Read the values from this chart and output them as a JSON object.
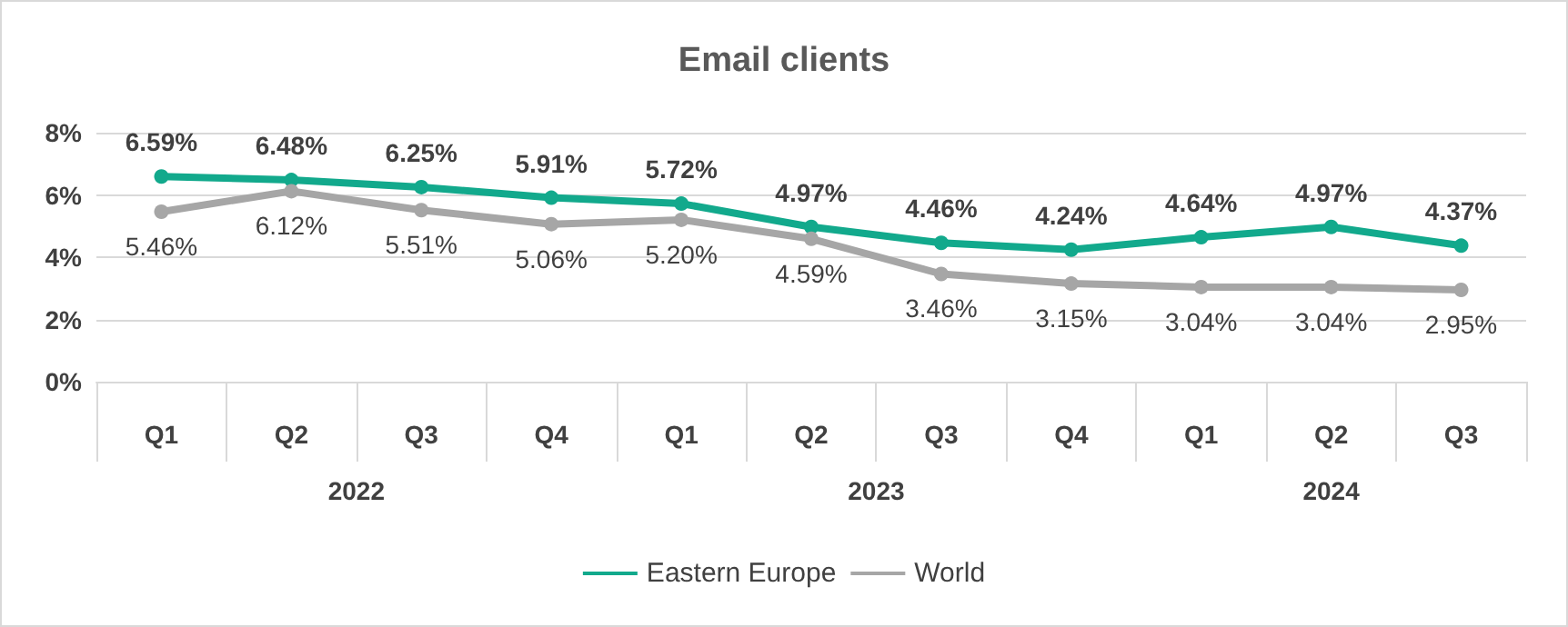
{
  "chart_data": {
    "type": "line",
    "title": "Email clients",
    "categories": [
      "Q1",
      "Q2",
      "Q3",
      "Q4",
      "Q1",
      "Q2",
      "Q3",
      "Q4",
      "Q1",
      "Q2",
      "Q3"
    ],
    "series": [
      {
        "name": "Eastern Europe",
        "color": "#12a98c",
        "values": [
          6.59,
          6.48,
          6.25,
          5.91,
          5.72,
          4.97,
          4.46,
          4.24,
          4.64,
          4.97,
          4.37
        ],
        "value_labels": [
          "6.59%",
          "6.48%",
          "6.25%",
          "5.91%",
          "5.72%",
          "4.97%",
          "4.46%",
          "4.24%",
          "4.64%",
          "4.97%",
          "4.37%"
        ]
      },
      {
        "name": "World",
        "color": "#a6a6a6",
        "values": [
          5.46,
          6.12,
          5.51,
          5.06,
          5.2,
          4.59,
          3.46,
          3.15,
          3.04,
          3.04,
          2.95
        ],
        "value_labels": [
          "5.46%",
          "6.12%",
          "5.51%",
          "5.06%",
          "5.20%",
          "4.59%",
          "3.46%",
          "3.15%",
          "3.04%",
          "3.04%",
          "2.95%"
        ]
      }
    ],
    "annotations": [
      "2022",
      "2023",
      "2024"
    ],
    "ylim": [
      0,
      8
    ],
    "yticks": [
      {
        "value": 0,
        "label": "0%"
      },
      {
        "value": 2,
        "label": "2%"
      },
      {
        "value": 4,
        "label": "4%"
      },
      {
        "value": 6,
        "label": "6%"
      },
      {
        "value": 8,
        "label": "8%"
      }
    ],
    "grid": "y",
    "legend": "bottom",
    "marker": "circle",
    "line_style": "solid"
  }
}
